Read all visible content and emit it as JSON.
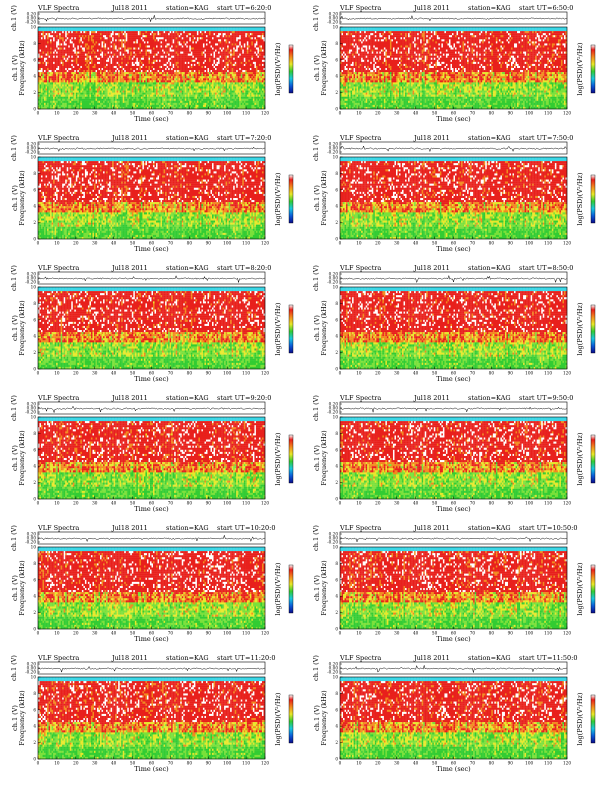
{
  "figure": {
    "type": "VLF spectrogram grid",
    "station": "KAG"
  },
  "labels": {
    "vlf": "VLF Spectra",
    "station": "station=KAG",
    "start_ut": "start UT",
    "ch_ylabel": "ch.1 (V)",
    "spec_ylabel": "Frequency (kHz)",
    "xlabel": "Time (sec)",
    "cbar_label": "log(PSD)(V²/Hz)"
  },
  "chart_data": [
    {
      "type": "heatmap",
      "date": "Jul18 2011",
      "ut": "=6:20:0",
      "xlim": [
        0,
        120
      ],
      "ylim": [
        0,
        10
      ],
      "xticks": [
        0,
        10,
        20,
        30,
        40,
        50,
        60,
        70,
        80,
        90,
        100,
        110,
        120
      ],
      "yticks": [
        0,
        2,
        4,
        6,
        8,
        10
      ],
      "ch_ticks": [
        "0.20",
        "0.00",
        "-0.20"
      ]
    },
    {
      "type": "heatmap",
      "date": "Jul18 2011",
      "ut": "=6:50:0",
      "xlim": [
        0,
        120
      ],
      "ylim": [
        0,
        10
      ],
      "xticks": [
        0,
        10,
        20,
        30,
        40,
        50,
        60,
        70,
        80,
        90,
        100,
        110,
        120
      ],
      "yticks": [
        0,
        2,
        4,
        6,
        8,
        10
      ],
      "ch_ticks": [
        "0.20",
        "0.00",
        "-0.20"
      ]
    },
    {
      "type": "heatmap",
      "date": "Jul18 2011",
      "ut": "=7:20:0",
      "xlim": [
        0,
        120
      ],
      "ylim": [
        0,
        10
      ],
      "xticks": [
        0,
        10,
        20,
        30,
        40,
        50,
        60,
        70,
        80,
        90,
        100,
        110,
        120
      ],
      "yticks": [
        0,
        2,
        4,
        6,
        8,
        10
      ],
      "ch_ticks": [
        "0.20",
        "0.00",
        "-0.20"
      ]
    },
    {
      "type": "heatmap",
      "date": "Jul18 2011",
      "ut": "=7:50:0",
      "xlim": [
        0,
        120
      ],
      "ylim": [
        0,
        10
      ],
      "xticks": [
        0,
        10,
        20,
        30,
        40,
        50,
        60,
        70,
        80,
        90,
        100,
        110,
        120
      ],
      "yticks": [
        0,
        2,
        4,
        6,
        8,
        10
      ],
      "ch_ticks": [
        "0.20",
        "0.00",
        "-0.20"
      ]
    },
    {
      "type": "heatmap",
      "date": "Jul18 2011",
      "ut": "=8:20:0",
      "xlim": [
        0,
        120
      ],
      "ylim": [
        0,
        10
      ],
      "xticks": [
        0,
        10,
        20,
        30,
        40,
        50,
        60,
        70,
        80,
        90,
        100,
        110,
        120
      ],
      "yticks": [
        0,
        2,
        4,
        6,
        8,
        10
      ],
      "ch_ticks": [
        "0.20",
        "0.00",
        "-0.20"
      ]
    },
    {
      "type": "heatmap",
      "date": "Jul18 2011",
      "ut": "=8:50:0",
      "xlim": [
        0,
        120
      ],
      "ylim": [
        0,
        10
      ],
      "xticks": [
        0,
        10,
        20,
        30,
        40,
        50,
        60,
        70,
        80,
        90,
        100,
        110,
        120
      ],
      "yticks": [
        0,
        2,
        4,
        6,
        8,
        10
      ],
      "ch_ticks": [
        "0.20",
        "0.00",
        "-0.20"
      ]
    },
    {
      "type": "heatmap",
      "date": "Jul18 2011",
      "ut": "=9:20:0",
      "xlim": [
        0,
        120
      ],
      "ylim": [
        0,
        10
      ],
      "xticks": [
        0,
        10,
        20,
        30,
        40,
        50,
        60,
        70,
        80,
        90,
        100,
        110,
        120
      ],
      "yticks": [
        0,
        2,
        4,
        6,
        8,
        10
      ],
      "ch_ticks": [
        "0.20",
        "0.00",
        "-0.20"
      ]
    },
    {
      "type": "heatmap",
      "date": "Jul18 2011",
      "ut": "=9:50:0",
      "xlim": [
        0,
        120
      ],
      "ylim": [
        0,
        10
      ],
      "xticks": [
        0,
        10,
        20,
        30,
        40,
        50,
        60,
        70,
        80,
        90,
        100,
        110,
        120
      ],
      "yticks": [
        0,
        2,
        4,
        6,
        8,
        10
      ],
      "ch_ticks": [
        "0.20",
        "0.00",
        "-0.20"
      ]
    },
    {
      "type": "heatmap",
      "date": "Jul18 2011",
      "ut": "=10:20:0",
      "xlim": [
        0,
        120
      ],
      "ylim": [
        0,
        10
      ],
      "xticks": [
        0,
        10,
        20,
        30,
        40,
        50,
        60,
        70,
        80,
        90,
        100,
        110,
        120
      ],
      "yticks": [
        0,
        2,
        4,
        6,
        8,
        10
      ],
      "ch_ticks": [
        "0.20",
        "0.00",
        "-0.20"
      ]
    },
    {
      "type": "heatmap",
      "date": "Jul18 2011",
      "ut": "=10:50:0",
      "xlim": [
        0,
        120
      ],
      "ylim": [
        0,
        10
      ],
      "xticks": [
        0,
        10,
        20,
        30,
        40,
        50,
        60,
        70,
        80,
        90,
        100,
        110,
        120
      ],
      "yticks": [
        0,
        2,
        4,
        6,
        8,
        10
      ],
      "ch_ticks": [
        "0.20",
        "0.00",
        "-0.20"
      ]
    },
    {
      "type": "heatmap",
      "date": "Jul18 2011",
      "ut": "=11:20:0",
      "xlim": [
        0,
        120
      ],
      "ylim": [
        0,
        10
      ],
      "xticks": [
        0,
        10,
        20,
        30,
        40,
        50,
        60,
        70,
        80,
        90,
        100,
        110,
        120
      ],
      "yticks": [
        0,
        2,
        4,
        6,
        8,
        10
      ],
      "ch_ticks": [
        "0.20",
        "0.00",
        "-0.20"
      ]
    },
    {
      "type": "heatmap",
      "date": "Jul18 2011",
      "ut": "=11:50:0",
      "xlim": [
        0,
        120
      ],
      "ylim": [
        0,
        10
      ],
      "xticks": [
        0,
        10,
        20,
        30,
        40,
        50,
        60,
        70,
        80,
        90,
        100,
        110,
        120
      ],
      "yticks": [
        0,
        2,
        4,
        6,
        8,
        10
      ],
      "ch_ticks": [
        "0.20",
        "0.00",
        "-0.20"
      ]
    }
  ]
}
